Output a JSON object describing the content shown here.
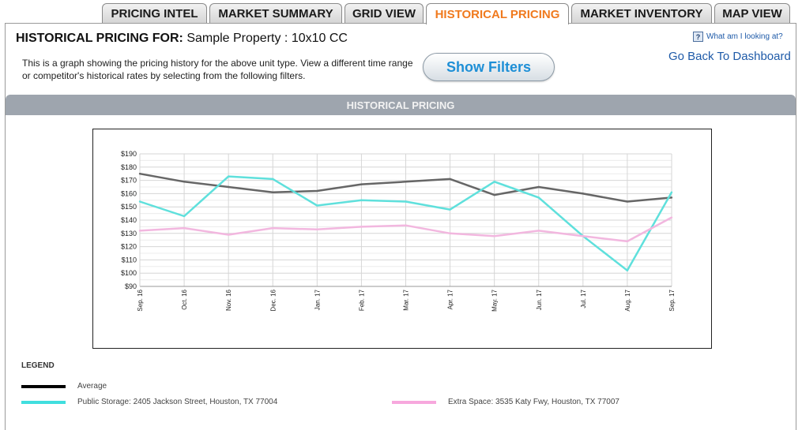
{
  "tabs": [
    {
      "label": "PRICING INTEL",
      "active": false
    },
    {
      "label": "MARKET SUMMARY",
      "active": false
    },
    {
      "label": "GRID VIEW",
      "active": false
    },
    {
      "label": "HISTORICAL PRICING",
      "active": true
    },
    {
      "label": "MARKET INVENTORY",
      "active": false
    },
    {
      "label": "MAP VIEW",
      "active": false
    }
  ],
  "header": {
    "title_label": "HISTORICAL PRICING FOR:",
    "title_value": "Sample Property : 10x10 CC",
    "description": "This is a graph showing the pricing history for the above unit type. View a different time range or competitor's historical rates by selecting from the following filters.",
    "help_link": "What am I looking at?",
    "help_icon": "question-icon",
    "back_link": "Go Back To Dashboard",
    "filters_button": "Show Filters"
  },
  "section_bar": "HISTORICAL PRICING",
  "legend_title": "LEGEND",
  "colors": {
    "accent_tab": "#f07a1e",
    "link": "#1e5aa8"
  },
  "chart_data": {
    "type": "line",
    "title": "",
    "xlabel": "",
    "ylabel": "",
    "ylim": [
      90,
      190
    ],
    "yticks": [
      90,
      100,
      110,
      120,
      130,
      140,
      150,
      160,
      170,
      180,
      190
    ],
    "ytick_labels": [
      "$90",
      "$100",
      "$110",
      "$120",
      "$130",
      "$140",
      "$150",
      "$160",
      "$170",
      "$180",
      "$190"
    ],
    "grid": true,
    "legend_position": "bottom",
    "categories": [
      "Sep. 16",
      "Oct. 16",
      "Nov. 16",
      "Dec. 16",
      "Jan. 17",
      "Feb. 17",
      "Mar. 17",
      "Apr. 17",
      "May. 17",
      "Jun. 17",
      "Jul. 17",
      "Aug. 17",
      "Sep. 17"
    ],
    "series": [
      {
        "name": "Average",
        "color": "#666666",
        "legend_color": "#000000",
        "values": [
          175,
          169,
          165,
          161,
          162,
          167,
          169,
          171,
          159,
          165,
          160,
          154,
          157
        ]
      },
      {
        "name": "Public Storage: 2405 Jackson Street, Houston, TX 77004",
        "color": "#5fe0dc",
        "legend_color": "#40dede",
        "values": [
          154,
          143,
          173,
          171,
          151,
          155,
          154,
          148,
          169,
          157,
          128,
          102,
          161
        ]
      },
      {
        "name": "Extra Space: 3535 Katy Fwy, Houston, TX 77007",
        "color": "#f2b7df",
        "legend_color": "#f7a8dd",
        "values": [
          132,
          134,
          129,
          134,
          133,
          135,
          136,
          130,
          128,
          132,
          128,
          124,
          142
        ]
      }
    ]
  }
}
